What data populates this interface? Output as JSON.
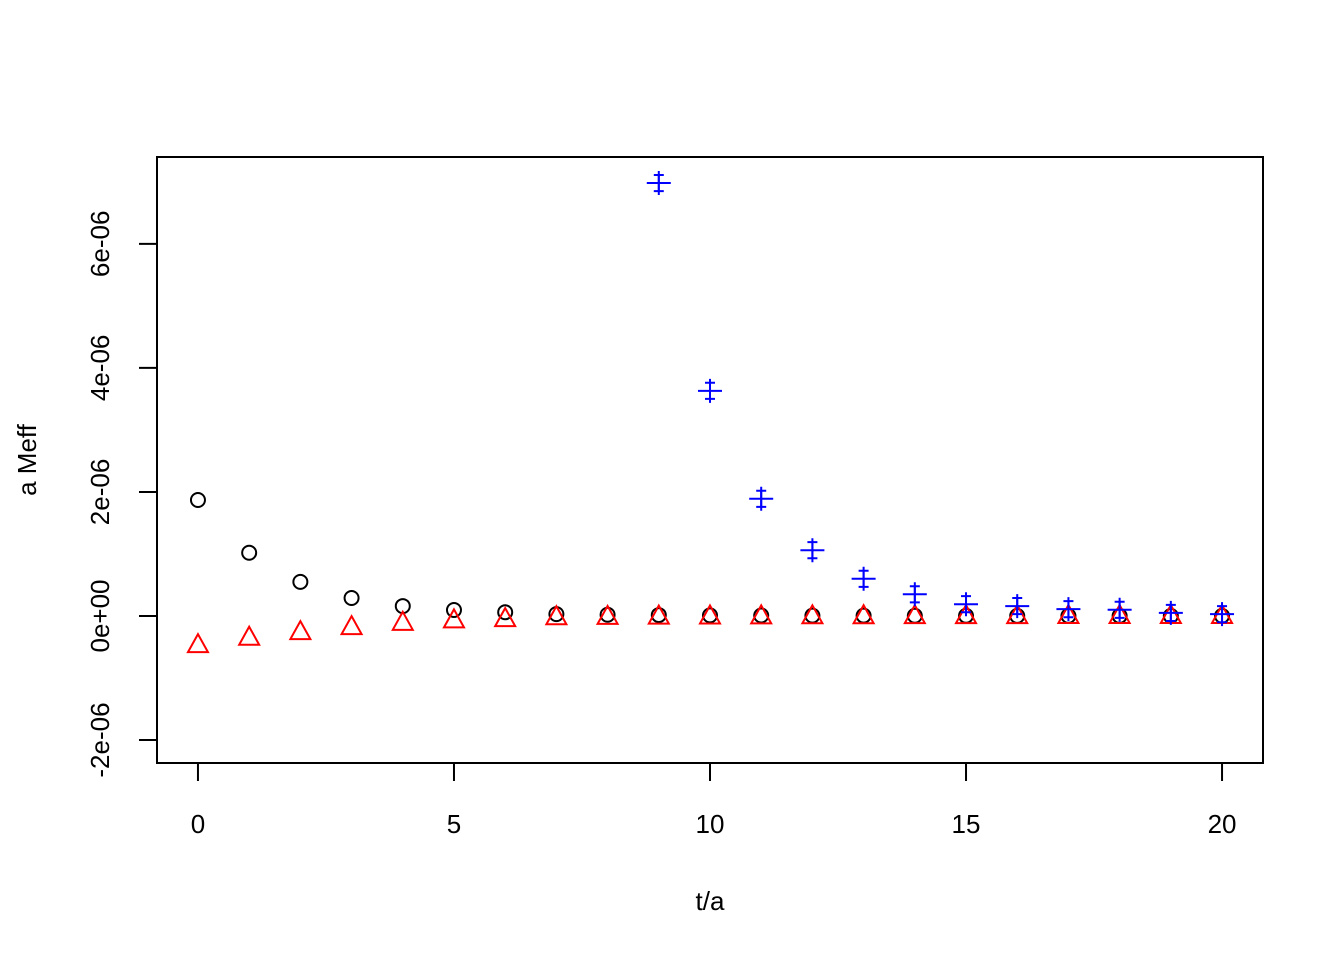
{
  "chart_data": {
    "type": "scatter",
    "xlabel": "t/a",
    "ylabel": "a Meff",
    "x": [
      0,
      1,
      2,
      3,
      4,
      5,
      6,
      7,
      8,
      9,
      10,
      11,
      12,
      13,
      14,
      15,
      16,
      17,
      18,
      19,
      20
    ],
    "series": [
      {
        "color": "#000000",
        "marker": "circle",
        "values": [
          1.87e-06,
          1.02e-06,
          5.5e-07,
          2.9e-07,
          1.6e-07,
          9.7e-08,
          6e-08,
          3e-08,
          2e-08,
          1.5e-08,
          1e-08,
          8e-09,
          6e-09,
          5e-09,
          4e-09,
          3e-09,
          2e-09,
          2e-09,
          1e-09,
          1e-09,
          1e-09
        ]
      },
      {
        "color": "#ff0000",
        "marker": "triangle",
        "values": [
          -4.7e-07,
          -3.5e-07,
          -2.6e-07,
          -1.8e-07,
          -1.1e-07,
          -7e-08,
          -5e-08,
          -2e-08,
          -1.5e-08,
          -1e-08,
          -8e-09,
          -6e-09,
          -5e-09,
          -4e-09,
          -3e-09,
          -2e-09,
          -2e-09,
          -1e-09,
          -1e-09,
          -1e-09,
          -1e-09
        ]
      },
      {
        "color": "#0000ff",
        "marker": "plus",
        "values": [
          null,
          null,
          null,
          null,
          null,
          null,
          null,
          null,
          null,
          6.98e-06,
          3.63e-06,
          1.89e-06,
          1.06e-06,
          6e-07,
          3.5e-07,
          1.9e-07,
          1.6e-07,
          1.1e-07,
          1e-07,
          5e-08,
          3e-08
        ],
        "errors": [
          null,
          null,
          null,
          null,
          null,
          null,
          null,
          null,
          null,
          1.3e-07,
          1.3e-07,
          1.3e-07,
          1.3e-07,
          1.3e-07,
          1.3e-07,
          1.3e-07,
          1.3e-07,
          1.3e-07,
          1.3e-07,
          1.3e-07,
          1.3e-07
        ]
      }
    ],
    "xlim": [
      -0.8,
      20.8
    ],
    "ylim": [
      -2.37e-06,
      7.4e-06
    ],
    "xticks": [
      0,
      5,
      10,
      15,
      20
    ],
    "yticks": [
      {
        "value": -2e-06,
        "label": "-2e-06"
      },
      {
        "value": 0,
        "label": "0e+00"
      },
      {
        "value": 2e-06,
        "label": "2e-06"
      },
      {
        "value": 4e-06,
        "label": "4e-06"
      },
      {
        "value": 6e-06,
        "label": "6e-06"
      }
    ]
  }
}
